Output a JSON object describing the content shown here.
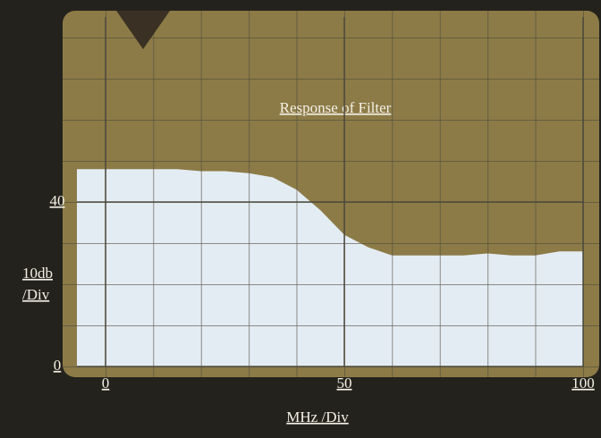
{
  "chart_data": {
    "type": "area",
    "title": "Response of Filter",
    "x_label": "MHz /Div",
    "y_label": [
      "10db",
      "/Div"
    ],
    "x": [
      0,
      5,
      10,
      15,
      20,
      25,
      30,
      35,
      40,
      45,
      50,
      55,
      60,
      65,
      70,
      75,
      80,
      85,
      90,
      95,
      100
    ],
    "series": [
      {
        "color": "#e4ecf3",
        "values": [
          48,
          48,
          48,
          48,
          47.5,
          47.5,
          47,
          46,
          43,
          38,
          32,
          29,
          27,
          27,
          27,
          27,
          27.5,
          27,
          27,
          28,
          28
        ]
      }
    ],
    "xlim": [
      -6,
      100
    ],
    "ylim": [
      0,
      85
    ],
    "xticks": [
      0,
      50,
      100
    ],
    "yticks": [
      0,
      40
    ]
  }
}
